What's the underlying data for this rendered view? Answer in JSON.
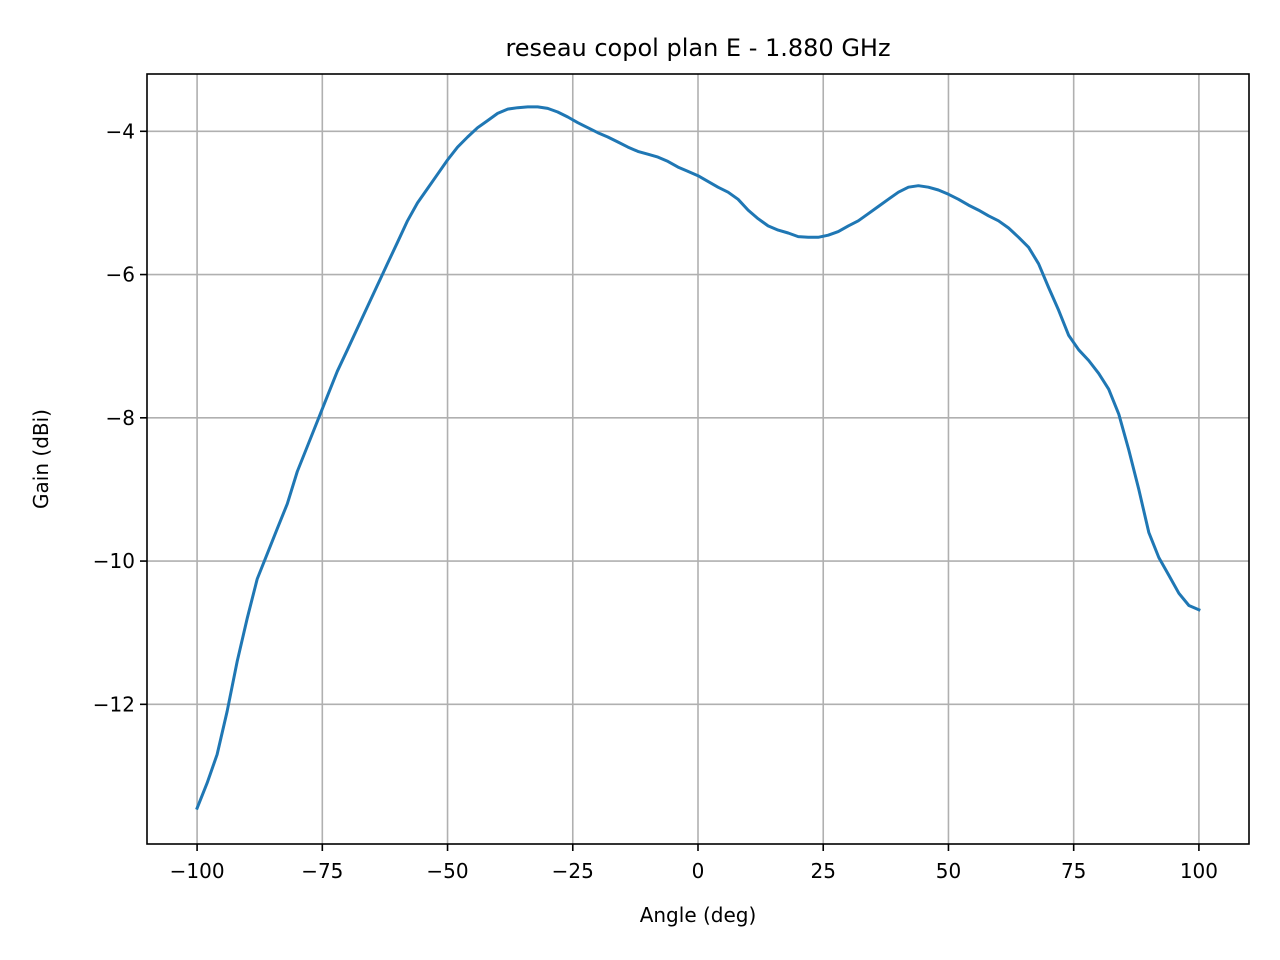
{
  "chart_data": {
    "type": "line",
    "title": "reseau copol plan E - 1.880 GHz",
    "xlabel": "Angle (deg)",
    "ylabel": "Gain (dBi)",
    "xlim": [
      -110,
      110
    ],
    "ylim": [
      -13.95,
      -3.2
    ],
    "xticks": [
      -100,
      -75,
      -50,
      -25,
      0,
      25,
      50,
      75,
      100
    ],
    "xtick_labels": [
      "−100",
      "−75",
      "−50",
      "−25",
      "0",
      "25",
      "50",
      "75",
      "100"
    ],
    "yticks": [
      -12,
      -10,
      -8,
      -6,
      -4
    ],
    "ytick_labels": [
      "−12",
      "−10",
      "−8",
      "−6",
      "−4"
    ],
    "grid": true,
    "legend": "none",
    "series": [
      {
        "color": "#1f77b4",
        "x": [
          -100,
          -98,
          -96,
          -94,
          -92,
          -90,
          -88,
          -86,
          -84,
          -82,
          -80,
          -78,
          -76,
          -74,
          -72,
          -70,
          -68,
          -66,
          -64,
          -62,
          -60,
          -58,
          -56,
          -54,
          -52,
          -50,
          -48,
          -46,
          -44,
          -42,
          -40,
          -38,
          -36,
          -34,
          -32,
          -30,
          -28,
          -26,
          -24,
          -22,
          -20,
          -18,
          -16,
          -14,
          -12,
          -10,
          -8,
          -6,
          -4,
          -2,
          0,
          2,
          4,
          6,
          8,
          10,
          12,
          14,
          16,
          18,
          20,
          22,
          24,
          26,
          28,
          30,
          32,
          34,
          36,
          38,
          40,
          42,
          44,
          46,
          48,
          50,
          52,
          54,
          56,
          58,
          60,
          62,
          64,
          66,
          68,
          70,
          72,
          74,
          76,
          78,
          80,
          82,
          84,
          86,
          88,
          90,
          92,
          94,
          96,
          98,
          100
        ],
        "y": [
          -13.45,
          -13.1,
          -12.7,
          -12.1,
          -11.4,
          -10.8,
          -10.25,
          -9.9,
          -9.55,
          -9.2,
          -8.75,
          -8.4,
          -8.05,
          -7.7,
          -7.35,
          -7.05,
          -6.75,
          -6.45,
          -6.15,
          -5.85,
          -5.55,
          -5.25,
          -5.0,
          -4.8,
          -4.6,
          -4.4,
          -4.22,
          -4.08,
          -3.95,
          -3.85,
          -3.75,
          -3.69,
          -3.67,
          -3.66,
          -3.66,
          -3.68,
          -3.73,
          -3.8,
          -3.88,
          -3.95,
          -4.02,
          -4.08,
          -4.15,
          -4.22,
          -4.28,
          -4.32,
          -4.36,
          -4.42,
          -4.5,
          -4.56,
          -4.62,
          -4.7,
          -4.78,
          -4.85,
          -4.95,
          -5.1,
          -5.22,
          -5.32,
          -5.38,
          -5.42,
          -5.47,
          -5.48,
          -5.48,
          -5.45,
          -5.4,
          -5.32,
          -5.25,
          -5.15,
          -5.05,
          -4.95,
          -4.85,
          -4.78,
          -4.76,
          -4.78,
          -4.82,
          -4.88,
          -4.95,
          -5.03,
          -5.1,
          -5.18,
          -5.25,
          -5.35,
          -5.48,
          -5.62,
          -5.85,
          -6.18,
          -6.5,
          -6.85,
          -7.05,
          -7.2,
          -7.38,
          -7.6,
          -7.95,
          -8.45,
          -9.0,
          -9.6,
          -9.95,
          -10.2,
          -10.45,
          -10.62,
          -10.68
        ]
      }
    ]
  }
}
